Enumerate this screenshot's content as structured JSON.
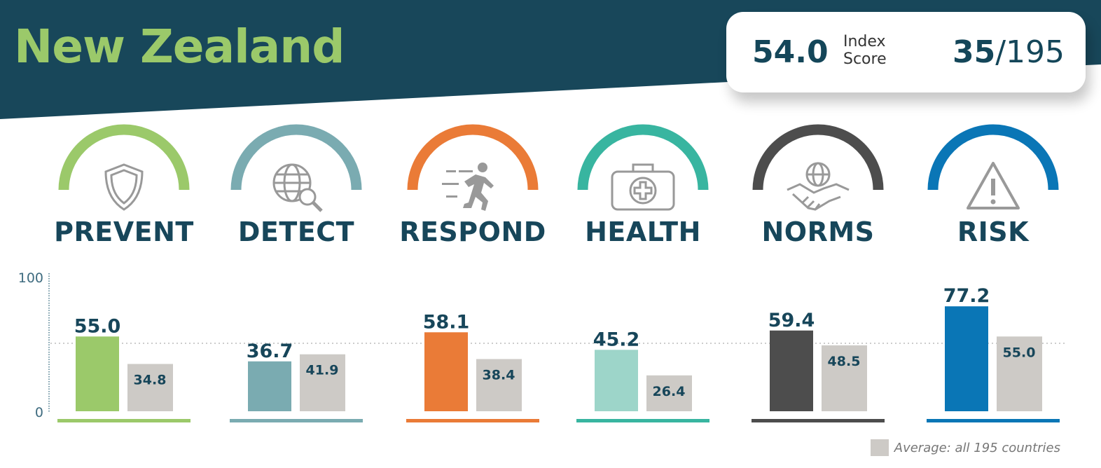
{
  "header": {
    "title": "New Zealand",
    "index_score": "54.0",
    "index_label_1": "Index",
    "index_label_2": "Score",
    "rank": "35",
    "rank_total": "/195"
  },
  "categories": [
    {
      "label": "PREVENT",
      "icon": "shield-icon",
      "color": "#9bc96a",
      "bar_color": "#9bc96a"
    },
    {
      "label": "DETECT",
      "icon": "globe-magnifier-icon",
      "color": "#7aabb1",
      "bar_color": "#7aabb1"
    },
    {
      "label": "RESPOND",
      "icon": "running-person-icon",
      "color": "#ea7b37",
      "bar_color": "#ea7b37"
    },
    {
      "label": "HEALTH",
      "icon": "medical-kit-icon",
      "color": "#38b5a0",
      "bar_color": "#9dd5c9"
    },
    {
      "label": "NORMS",
      "icon": "globe-handshake-icon",
      "color": "#4d4d4d",
      "bar_color": "#4d4d4d"
    },
    {
      "label": "RISK",
      "icon": "warning-triangle-icon",
      "color": "#0a76b6",
      "bar_color": "#0a76b6"
    }
  ],
  "chart_data": {
    "type": "bar",
    "categories": [
      "PREVENT",
      "DETECT",
      "RESPOND",
      "HEALTH",
      "NORMS",
      "RISK"
    ],
    "series": [
      {
        "name": "New Zealand",
        "values": [
          55.0,
          36.7,
          58.1,
          45.2,
          59.4,
          77.2
        ]
      },
      {
        "name": "Average: all 195 countries",
        "values": [
          34.8,
          41.9,
          38.4,
          26.4,
          48.5,
          55.0
        ]
      }
    ],
    "value_labels": {
      "country": [
        "55.0",
        "36.7",
        "58.1",
        "45.2",
        "59.4",
        "77.2"
      ],
      "average": [
        "34.8",
        "41.9",
        "38.4",
        "26.4",
        "48.5",
        "55.0"
      ]
    },
    "ylim": [
      0,
      100
    ],
    "yticks": [
      "0",
      "100"
    ],
    "reference_line": 50,
    "avg_color": "#cdcac6",
    "legend": "bottom-right"
  },
  "legend": {
    "label": "Average: all 195 countries"
  }
}
